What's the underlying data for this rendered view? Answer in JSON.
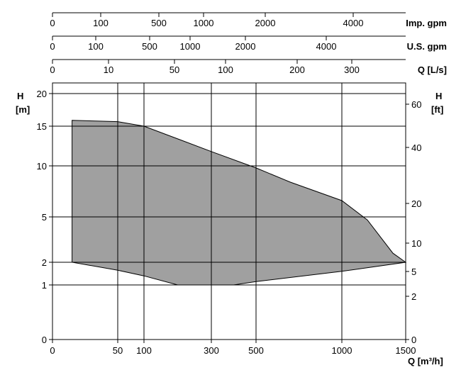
{
  "chart_data": {
    "type": "area",
    "title": "",
    "fill_color": "#a0a0a0",
    "line_color": "#000000",
    "grid": true,
    "x_axis": {
      "label": "Q [m³/h]",
      "ticks": [
        0,
        50,
        100,
        300,
        500,
        1000,
        1500
      ],
      "tick_labels": [
        "0",
        "50",
        "100",
        "300",
        "500",
        "1000",
        "1500"
      ]
    },
    "y_axis_left": {
      "label_line1": "H",
      "label_line2": "[m]",
      "ticks": [
        0,
        1,
        2,
        5,
        10,
        15,
        20
      ],
      "tick_labels": [
        "0",
        "1",
        "2",
        "5",
        "10",
        "15",
        "20"
      ]
    },
    "y_axis_right": {
      "label_line1": "H",
      "label_line2": "[ft]",
      "ticks": [
        0,
        2,
        5,
        10,
        20,
        40,
        60
      ],
      "tick_labels": [
        "0",
        "2",
        "5",
        "10",
        "20",
        "40",
        "60"
      ]
    },
    "top_scales": [
      {
        "label": "Imp. gpm",
        "ticks": [
          "0",
          "100",
          "500",
          "1000",
          "2000",
          "4000"
        ]
      },
      {
        "label": "U.S. gpm",
        "ticks": [
          "0",
          "100",
          "500",
          "1000",
          "2000",
          "4000"
        ]
      },
      {
        "label": "Q [L/s]",
        "ticks": [
          "0",
          "10",
          "50",
          "100",
          "200",
          "300"
        ]
      }
    ],
    "envelope": {
      "upper_curve": [
        {
          "q": 15,
          "h": 15.9
        },
        {
          "q": 50,
          "h": 15.7
        },
        {
          "q": 100,
          "h": 15.0
        },
        {
          "q": 200,
          "h": 13.4
        },
        {
          "q": 300,
          "h": 11.8
        },
        {
          "q": 500,
          "h": 9.8
        },
        {
          "q": 700,
          "h": 8.4
        },
        {
          "q": 1000,
          "h": 6.6
        },
        {
          "q": 1200,
          "h": 4.8
        },
        {
          "q": 1400,
          "h": 2.6
        },
        {
          "q": 1500,
          "h": 2.0
        }
      ],
      "lower_curve": [
        {
          "q": 1500,
          "h": 2.0
        },
        {
          "q": 1000,
          "h": 1.6
        },
        {
          "q": 500,
          "h": 1.15
        },
        {
          "q": 400,
          "h": 1.0
        },
        {
          "q": 200,
          "h": 1.0
        },
        {
          "q": 100,
          "h": 1.4
        },
        {
          "q": 50,
          "h": 1.65
        },
        {
          "q": 15,
          "h": 2.0
        }
      ]
    }
  }
}
